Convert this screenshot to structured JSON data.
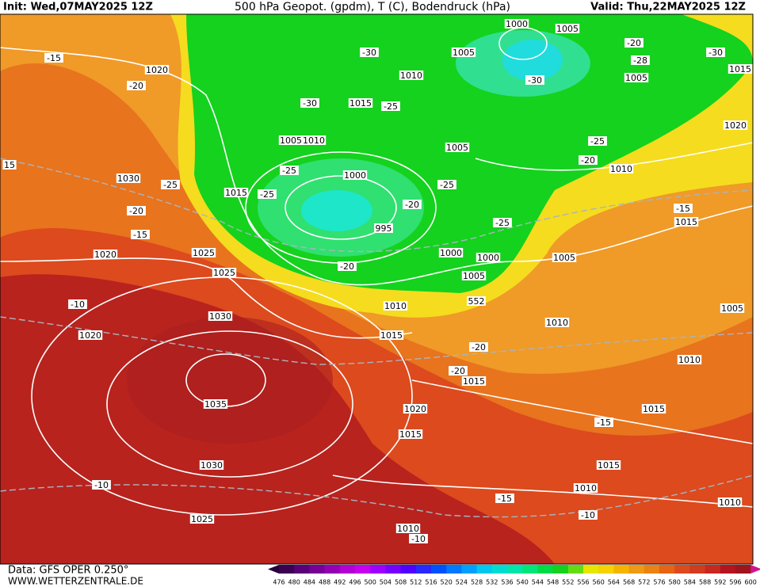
{
  "header": {
    "init": "Init: Wed,07MAY2025 12Z",
    "title": "500 hPa Geopot. (gpdm), T (C), Bodendruck (hPa)",
    "valid": "Valid: Thu,22MAY2025 12Z"
  },
  "footer": {
    "source": "Data: GFS OPER 0.250°",
    "site": "WWW.WETTERZENTRALE.DE"
  },
  "colorbar": {
    "labels": [
      476,
      480,
      484,
      488,
      492,
      496,
      500,
      504,
      508,
      512,
      516,
      520,
      524,
      528,
      532,
      536,
      540,
      544,
      548,
      552,
      556,
      560,
      564,
      568,
      572,
      576,
      580,
      584,
      588,
      592,
      596,
      600
    ]
  },
  "map_labels": [
    1000,
    1005,
    -20,
    -15,
    1020,
    -30,
    1005,
    -28,
    -30,
    1015,
    1010,
    -30,
    1005,
    -20,
    -30,
    1015,
    -25,
    1020,
    1005,
    1010,
    1005,
    -25,
    -20,
    1010,
    15,
    1030,
    -25,
    -25,
    1000,
    -25,
    1015,
    -25,
    -20,
    -20,
    -15,
    1015,
    -15,
    995,
    -25,
    1020,
    1025,
    1000,
    1000,
    1005,
    -20,
    1025,
    1005,
    552,
    -10,
    1010,
    1005,
    1030,
    1010,
    1020,
    1015,
    -20,
    1010,
    -20,
    1015,
    1035,
    1020,
    1015,
    1015,
    -15,
    1030,
    1015,
    -10,
    1010,
    -15,
    1010,
    1025,
    -10,
    1010,
    -10
  ]
}
